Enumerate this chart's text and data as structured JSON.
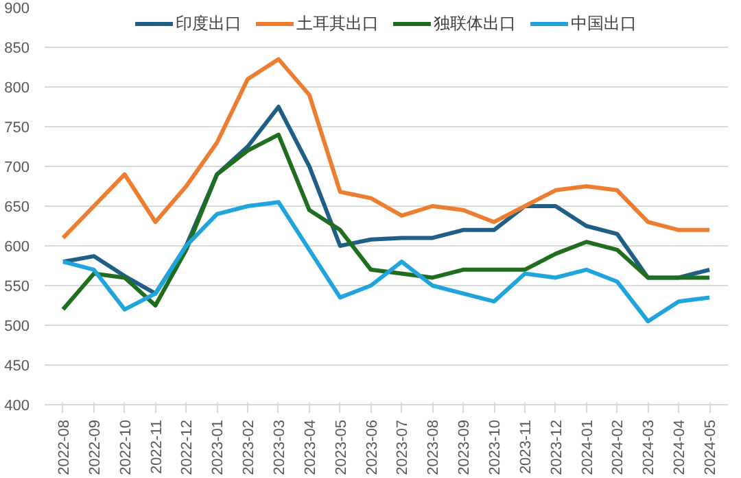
{
  "chart_data": {
    "type": "line",
    "categories": [
      "2022-08",
      "2022-09",
      "2022-10",
      "2022-11",
      "2022-12",
      "2023-01",
      "2023-02",
      "2023-03",
      "2023-04",
      "2023-05",
      "2023-06",
      "2023-07",
      "2023-08",
      "2023-09",
      "2023-10",
      "2023-11",
      "2023-12",
      "2024-01",
      "2024-02",
      "2024-03",
      "2024-04",
      "2024-05"
    ],
    "series": [
      {
        "name": "印度出口",
        "color": "#1f5f86",
        "values": [
          580,
          587,
          562,
          540,
          600,
          690,
          725,
          775,
          700,
          600,
          608,
          610,
          610,
          620,
          620,
          650,
          650,
          625,
          615,
          560,
          560,
          570
        ]
      },
      {
        "name": "土耳其出口",
        "color": "#ed7d31",
        "values": [
          610,
          650,
          690,
          630,
          675,
          730,
          810,
          835,
          790,
          668,
          660,
          638,
          650,
          645,
          630,
          650,
          670,
          675,
          670,
          630,
          620,
          620
        ]
      },
      {
        "name": "独联体出口",
        "color": "#1e6e1e",
        "values": [
          520,
          565,
          560,
          525,
          595,
          690,
          720,
          740,
          645,
          620,
          570,
          565,
          560,
          570,
          570,
          570,
          590,
          605,
          595,
          560,
          560,
          560
        ]
      },
      {
        "name": "中国出口",
        "color": "#20a4dc",
        "values": [
          580,
          570,
          520,
          540,
          600,
          640,
          650,
          655,
          595,
          535,
          550,
          580,
          550,
          540,
          530,
          565,
          560,
          570,
          555,
          505,
          530,
          535
        ]
      }
    ],
    "ylim": [
      400,
      900
    ],
    "yticks": [
      400,
      450,
      500,
      550,
      600,
      650,
      700,
      750,
      800,
      850,
      900
    ],
    "grid": "y",
    "legend": "top",
    "marker": "none",
    "line_style": "solid"
  }
}
